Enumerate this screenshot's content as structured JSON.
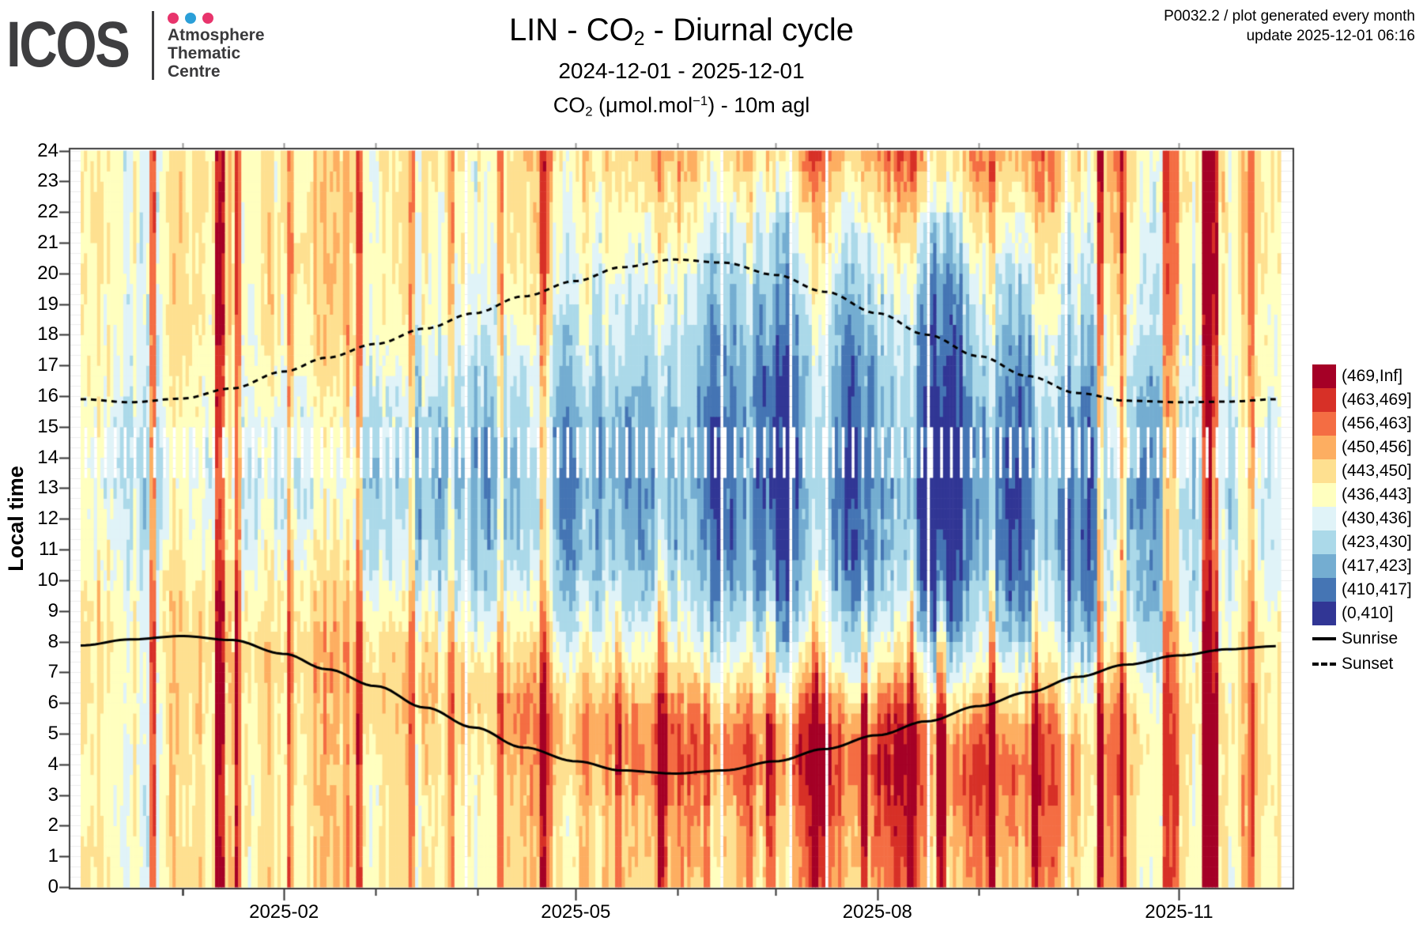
{
  "header": {
    "logo": {
      "text": "ICOS",
      "dot_colors": [
        "#e8346c",
        "#2b9fd8",
        "#e8346c"
      ],
      "org_lines": [
        "Atmosphere",
        "Thematic",
        "Centre"
      ]
    },
    "title_parts": {
      "pre": "LIN - CO",
      "sub": "2",
      "post": " - Diurnal cycle"
    },
    "subtitle": "2024-12-01 - 2025-12-01",
    "units_parts": {
      "pre": "CO",
      "sub": "2",
      "mid": " (μmol.mol",
      "sup": "−1",
      "post": ") - 10m agl"
    },
    "annotation_line1": "P0032.2 / plot generated every month",
    "annotation_line2": "update  2025-12-01 06:16"
  },
  "chart_data": {
    "type": "heatmap",
    "title": "LIN - CO2 - Diurnal cycle",
    "station": "LIN",
    "species": "CO2",
    "height": "10m agl",
    "units": "μmol.mol-1",
    "date_range": [
      "2024-12-01",
      "2025-12-01"
    ],
    "ylabel": "Local time",
    "ylim": [
      0,
      24
    ],
    "y_ticks": [
      0,
      1,
      2,
      3,
      4,
      5,
      6,
      7,
      8,
      9,
      10,
      11,
      12,
      13,
      14,
      15,
      16,
      17,
      18,
      19,
      20,
      21,
      22,
      23,
      24
    ],
    "x_ticks": [
      {
        "label": "2025-02",
        "day": 62
      },
      {
        "label": "2025-05",
        "day": 151
      },
      {
        "label": "2025-08",
        "day": 243
      },
      {
        "label": "2025-11",
        "day": 335
      }
    ],
    "month_start_days": [
      0,
      31,
      62,
      90,
      121,
      151,
      182,
      212,
      243,
      274,
      304,
      335,
      366
    ],
    "thresholds": [
      410,
      417,
      423,
      430,
      436,
      443,
      450,
      456,
      463,
      469
    ],
    "bins": [
      {
        "range": "(469,Inf]",
        "color": "#a50026"
      },
      {
        "range": "(463,469]",
        "color": "#d73027"
      },
      {
        "range": "(456,463]",
        "color": "#f46d43"
      },
      {
        "range": "(450,456]",
        "color": "#fdae61"
      },
      {
        "range": "(443,450]",
        "color": "#fee090"
      },
      {
        "range": "(436,443]",
        "color": "#ffffbf"
      },
      {
        "range": "(430,436]",
        "color": "#e0f3f8"
      },
      {
        "range": "(423,430]",
        "color": "#abd9e9"
      },
      {
        "range": "(417,423]",
        "color": "#74add1"
      },
      {
        "range": "(410,417]",
        "color": "#4575b4"
      },
      {
        "range": "(0,410]",
        "color": "#313695"
      }
    ],
    "legend_lines": [
      {
        "label": "Sunrise",
        "style": "solid"
      },
      {
        "label": "Sunset",
        "style": "dashed"
      }
    ],
    "monthly_hourly_mean": [
      [
        445,
        445,
        445,
        445,
        445,
        446,
        446,
        447,
        447,
        446,
        444,
        442,
        440,
        439,
        439,
        440,
        442,
        443,
        444,
        444,
        445,
        445,
        445,
        445
      ],
      [
        446,
        446,
        446,
        446,
        446,
        447,
        447,
        448,
        448,
        446,
        443,
        440,
        438,
        436,
        436,
        438,
        440,
        442,
        444,
        445,
        445,
        446,
        446,
        446
      ],
      [
        444,
        444,
        444,
        444,
        445,
        446,
        447,
        448,
        447,
        444,
        440,
        436,
        433,
        432,
        432,
        434,
        437,
        440,
        442,
        443,
        443,
        444,
        444,
        444
      ],
      [
        445,
        445,
        445,
        446,
        447,
        449,
        451,
        450,
        446,
        440,
        434,
        430,
        428,
        427,
        427,
        429,
        432,
        436,
        439,
        441,
        442,
        443,
        444,
        444
      ],
      [
        446,
        446,
        447,
        448,
        451,
        454,
        453,
        448,
        441,
        434,
        429,
        426,
        424,
        423,
        423,
        425,
        428,
        431,
        435,
        438,
        440,
        442,
        443,
        444
      ],
      [
        447,
        448,
        449,
        452,
        456,
        457,
        452,
        444,
        436,
        430,
        425,
        422,
        421,
        420,
        420,
        421,
        423,
        426,
        429,
        432,
        435,
        438,
        441,
        444
      ],
      [
        450,
        451,
        453,
        457,
        461,
        459,
        451,
        441,
        433,
        427,
        422,
        419,
        418,
        417,
        417,
        418,
        419,
        421,
        424,
        427,
        430,
        434,
        438,
        444
      ],
      [
        452,
        454,
        456,
        460,
        463,
        461,
        452,
        441,
        432,
        425,
        420,
        417,
        416,
        415,
        415,
        416,
        417,
        419,
        422,
        425,
        429,
        434,
        439,
        445
      ],
      [
        453,
        455,
        458,
        462,
        464,
        460,
        450,
        439,
        430,
        423,
        418,
        415,
        414,
        413,
        414,
        415,
        416,
        418,
        421,
        425,
        429,
        434,
        440,
        446
      ],
      [
        452,
        454,
        456,
        459,
        460,
        456,
        448,
        438,
        430,
        424,
        420,
        418,
        417,
        417,
        418,
        419,
        421,
        424,
        427,
        431,
        435,
        440,
        444,
        448
      ],
      [
        449,
        450,
        451,
        452,
        453,
        452,
        448,
        443,
        438,
        433,
        430,
        428,
        427,
        427,
        428,
        430,
        432,
        435,
        438,
        441,
        443,
        445,
        447,
        448
      ],
      [
        446,
        446,
        447,
        447,
        448,
        448,
        448,
        447,
        445,
        442,
        439,
        437,
        436,
        436,
        436,
        438,
        440,
        442,
        443,
        444,
        445,
        445,
        446,
        446
      ]
    ],
    "sunrise_points": [
      [
        0,
        7.87
      ],
      [
        15,
        8.07
      ],
      [
        31,
        8.18
      ],
      [
        46,
        8.05
      ],
      [
        62,
        7.6
      ],
      [
        75,
        7.1
      ],
      [
        90,
        6.55
      ],
      [
        105,
        5.85
      ],
      [
        120,
        5.2
      ],
      [
        135,
        4.55
      ],
      [
        151,
        4.1
      ],
      [
        165,
        3.8
      ],
      [
        181,
        3.7
      ],
      [
        196,
        3.8
      ],
      [
        212,
        4.1
      ],
      [
        227,
        4.5
      ],
      [
        243,
        4.95
      ],
      [
        258,
        5.4
      ],
      [
        274,
        5.9
      ],
      [
        289,
        6.35
      ],
      [
        304,
        6.85
      ],
      [
        319,
        7.25
      ],
      [
        335,
        7.55
      ],
      [
        350,
        7.75
      ],
      [
        365,
        7.85
      ]
    ],
    "sunset_points": [
      [
        0,
        15.9
      ],
      [
        15,
        15.8
      ],
      [
        31,
        15.92
      ],
      [
        46,
        16.25
      ],
      [
        62,
        16.8
      ],
      [
        75,
        17.25
      ],
      [
        90,
        17.7
      ],
      [
        105,
        18.2
      ],
      [
        120,
        18.7
      ],
      [
        135,
        19.25
      ],
      [
        151,
        19.75
      ],
      [
        165,
        20.2
      ],
      [
        181,
        20.45
      ],
      [
        196,
        20.35
      ],
      [
        212,
        19.95
      ],
      [
        227,
        19.4
      ],
      [
        243,
        18.7
      ],
      [
        258,
        18.0
      ],
      [
        274,
        17.3
      ],
      [
        289,
        16.65
      ],
      [
        304,
        16.1
      ],
      [
        319,
        15.85
      ],
      [
        335,
        15.8
      ],
      [
        350,
        15.82
      ],
      [
        365,
        15.9
      ]
    ],
    "calibration_gap": {
      "period_days": 3,
      "hours": [
        13.33,
        15.0
      ],
      "secondary_period": 6,
      "secondary_hours": [
        14.0,
        15.0
      ]
    },
    "missing_days": [
      117,
      195,
      216,
      227,
      258,
      300
    ],
    "spike_days": [
      {
        "start": 21,
        "end": 22,
        "amp": 24
      },
      {
        "start": 41,
        "end": 43,
        "amp": 30
      },
      {
        "start": 47,
        "end": 48,
        "amp": 22
      },
      {
        "start": 63,
        "end": 64,
        "amp": 18
      },
      {
        "start": 84,
        "end": 85,
        "amp": 16
      },
      {
        "start": 100,
        "end": 101,
        "amp": 18
      },
      {
        "start": 112,
        "end": 113,
        "amp": 14
      },
      {
        "start": 127,
        "end": 128,
        "amp": 16
      },
      {
        "start": 140,
        "end": 141,
        "amp": 14
      },
      {
        "start": 163,
        "end": 164,
        "amp": 14
      },
      {
        "start": 176,
        "end": 178,
        "amp": 16
      },
      {
        "start": 190,
        "end": 191,
        "amp": 14
      },
      {
        "start": 209,
        "end": 211,
        "amp": 18
      },
      {
        "start": 223,
        "end": 224,
        "amp": 16
      },
      {
        "start": 238,
        "end": 239,
        "amp": 18
      },
      {
        "start": 252,
        "end": 253,
        "amp": 20
      },
      {
        "start": 261,
        "end": 263,
        "amp": 22
      },
      {
        "start": 277,
        "end": 278,
        "amp": 16
      },
      {
        "start": 290,
        "end": 291,
        "amp": 14
      },
      {
        "start": 310,
        "end": 311,
        "amp": 20
      },
      {
        "start": 317,
        "end": 318,
        "amp": 16
      },
      {
        "start": 330,
        "end": 334,
        "amp": 24
      },
      {
        "start": 342,
        "end": 346,
        "amp": 30
      },
      {
        "start": 356,
        "end": 357,
        "amp": 16
      }
    ],
    "cool_days": [
      {
        "start": 214,
        "end": 222,
        "amp": -5
      },
      {
        "start": 255,
        "end": 268,
        "amp": -8
      },
      {
        "start": 282,
        "end": 290,
        "amp": -6
      },
      {
        "start": 300,
        "end": 308,
        "amp": -5
      }
    ],
    "seed": 1337
  },
  "layout_colors": {
    "panel_border": "#3b3b3b",
    "grid": "#ededed",
    "tick": "#333333",
    "top_tick": "#999999"
  }
}
